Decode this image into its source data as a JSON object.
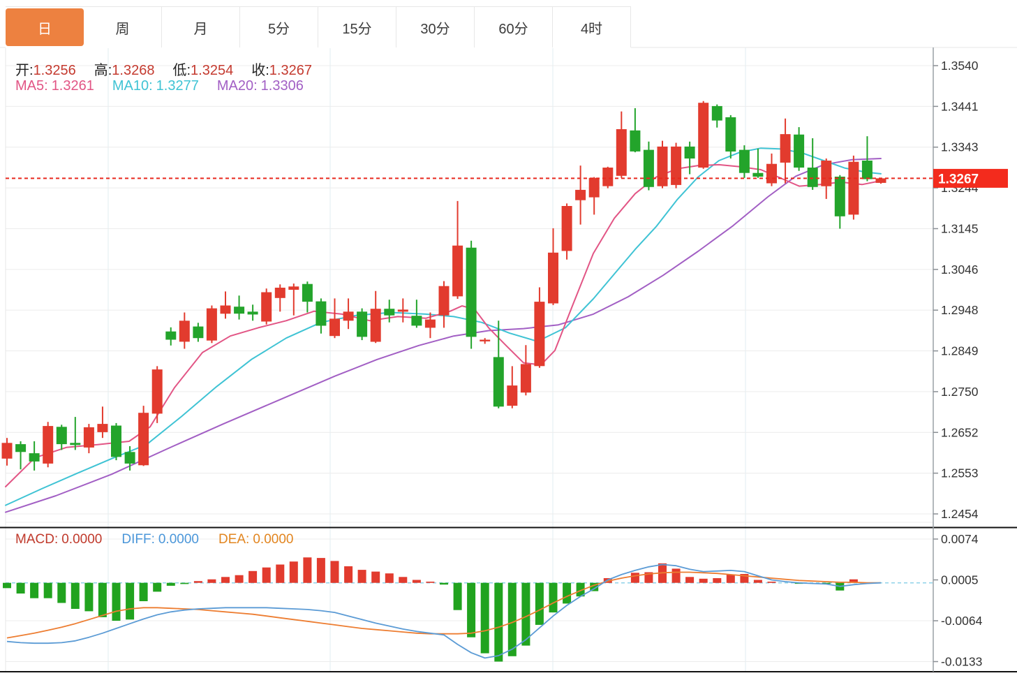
{
  "tabs": {
    "items": [
      {
        "key": "day",
        "label": "日",
        "active": true
      },
      {
        "key": "week",
        "label": "周",
        "active": false
      },
      {
        "key": "month",
        "label": "月",
        "active": false
      },
      {
        "key": "5min",
        "label": "5分",
        "active": false
      },
      {
        "key": "15min",
        "label": "15分",
        "active": false
      },
      {
        "key": "30min",
        "label": "30分",
        "active": false
      },
      {
        "key": "60min",
        "label": "60分",
        "active": false
      },
      {
        "key": "4hour",
        "label": "4时",
        "active": false
      }
    ]
  },
  "legend": {
    "open_label": "开:",
    "open": "1.3256",
    "high_label": "高:",
    "high": "1.3268",
    "low_label": "低:",
    "low": "1.3254",
    "close_label": "收:",
    "close": "1.3267"
  },
  "ma_legend": {
    "ma5_label": "MA5:",
    "ma5": "1.3261",
    "ma10_label": "MA10:",
    "ma10": "1.3277",
    "ma20_label": "MA20:",
    "ma20": "1.3306"
  },
  "macd_legend": {
    "macd_label": "MACD:",
    "macd": "0.0000",
    "diff_label": "DIFF:",
    "diff": "0.0000",
    "dea_label": "DEA:",
    "dea": "0.0000"
  },
  "price_tag": "1.3267",
  "colors": {
    "up": "#e23b2e",
    "down": "#23a42b",
    "ma5": "#e25585",
    "ma10": "#3fc3d4",
    "ma20": "#a25fc4",
    "diff": "#5b9bd5",
    "dea": "#ed7d31",
    "hist_up": "#e23b2e",
    "hist_down": "#21a31f",
    "dotted_price": "#e8281e",
    "tag_bg": "#f32b1d",
    "tag_text": "#ffffff",
    "tab_active": "#ed8140",
    "axis_text": "#333333",
    "grid": "#ececec",
    "vgrid": "#e2ecf2",
    "zero_dash": "#8fd3e8",
    "axis_line": "#9aa0a6",
    "separator": "#111111"
  },
  "chart_data": {
    "type": "candlestick+macd",
    "title": "",
    "price_axis": {
      "max": 1.354,
      "min": 1.2454,
      "labels": [
        "1.3540",
        "1.3441",
        "1.3343",
        "1.3244",
        "1.3145",
        "1.3046",
        "1.2948",
        "1.2849",
        "1.2750",
        "1.2652",
        "1.2553",
        "1.2454"
      ]
    },
    "current_price": 1.3267,
    "candles": [
      [
        1.2588,
        1.2638,
        1.2571,
        1.2626
      ],
      [
        1.2623,
        1.263,
        1.2562,
        1.2604
      ],
      [
        1.2601,
        1.263,
        1.2559,
        1.2581
      ],
      [
        1.2576,
        1.2677,
        1.2567,
        1.2667
      ],
      [
        1.2665,
        1.267,
        1.2609,
        1.2623
      ],
      [
        1.2626,
        1.2689,
        1.2609,
        1.2621
      ],
      [
        1.2615,
        1.2672,
        1.2601,
        1.2664
      ],
      [
        1.2652,
        1.2714,
        1.2638,
        1.2672
      ],
      [
        1.2668,
        1.2674,
        1.2584,
        1.2592
      ],
      [
        1.2604,
        1.2618,
        1.2559,
        1.2576
      ],
      [
        1.2572,
        1.2716,
        1.257,
        1.2699
      ],
      [
        1.2697,
        1.2812,
        1.2674,
        1.2804
      ],
      [
        1.2896,
        1.2906,
        1.2862,
        1.2876
      ],
      [
        1.2871,
        1.2942,
        1.2854,
        1.2922
      ],
      [
        1.2908,
        1.2917,
        1.2871,
        1.288
      ],
      [
        1.2874,
        1.2959,
        1.2868,
        1.2952
      ],
      [
        1.2939,
        1.2993,
        1.2927,
        1.2959
      ],
      [
        1.2956,
        1.2983,
        1.2925,
        1.2939
      ],
      [
        1.2944,
        1.2961,
        1.2922,
        1.2937
      ],
      [
        1.292,
        1.3,
        1.2913,
        1.2991
      ],
      [
        1.2977,
        1.301,
        1.2944,
        1.3002
      ],
      [
        1.2997,
        1.3012,
        1.2935,
        1.3005
      ],
      [
        1.3011,
        1.3017,
        1.2942,
        1.2968
      ],
      [
        1.2969,
        1.2976,
        1.2891,
        1.291
      ],
      [
        1.2885,
        1.2976,
        1.288,
        1.2927
      ],
      [
        1.2922,
        1.2976,
        1.2902,
        1.2944
      ],
      [
        1.2944,
        1.2952,
        1.2875,
        1.2883
      ],
      [
        1.2871,
        1.2994,
        1.2868,
        1.2951
      ],
      [
        1.2951,
        1.2973,
        1.2918,
        1.2935
      ],
      [
        1.2944,
        1.2976,
        1.2918,
        1.2949
      ],
      [
        1.2934,
        1.2973,
        1.2905,
        1.291
      ],
      [
        1.2905,
        1.2942,
        1.288,
        1.2925
      ],
      [
        1.2935,
        1.3018,
        1.2905,
        1.3006
      ],
      [
        1.2981,
        1.3212,
        1.2975,
        1.3104
      ],
      [
        1.3099,
        1.3116,
        1.2854,
        1.2883
      ],
      [
        1.2872,
        1.288,
        1.2866,
        1.2876
      ],
      [
        1.2834,
        1.2922,
        1.271,
        1.2714
      ],
      [
        1.2716,
        1.2812,
        1.271,
        1.2765
      ],
      [
        1.2748,
        1.2863,
        1.2741,
        1.2817
      ],
      [
        1.2812,
        1.3003,
        1.2808,
        1.2968
      ],
      [
        1.2964,
        1.3146,
        1.296,
        1.3087
      ],
      [
        1.3091,
        1.3206,
        1.307,
        1.32
      ],
      [
        1.3214,
        1.3298,
        1.3155,
        1.3239
      ],
      [
        1.3221,
        1.327,
        1.3179,
        1.3268
      ],
      [
        1.3248,
        1.3295,
        1.3243,
        1.3293
      ],
      [
        1.3273,
        1.3429,
        1.3268,
        1.3386
      ],
      [
        1.3383,
        1.3437,
        1.333,
        1.3332
      ],
      [
        1.3336,
        1.3356,
        1.3238,
        1.3246
      ],
      [
        1.3248,
        1.3358,
        1.3243,
        1.3344
      ],
      [
        1.3251,
        1.3353,
        1.3243,
        1.3344
      ],
      [
        1.3344,
        1.3356,
        1.3277,
        1.3315
      ],
      [
        1.3293,
        1.3454,
        1.329,
        1.345
      ],
      [
        1.3442,
        1.3446,
        1.339,
        1.3407
      ],
      [
        1.3415,
        1.342,
        1.3315,
        1.3332
      ],
      [
        1.3336,
        1.3347,
        1.3268,
        1.328
      ],
      [
        1.328,
        1.3339,
        1.3268,
        1.3271
      ],
      [
        1.3255,
        1.3327,
        1.3248,
        1.3302
      ],
      [
        1.3305,
        1.3412,
        1.3255,
        1.3374
      ],
      [
        1.3373,
        1.3391,
        1.3285,
        1.3293
      ],
      [
        1.3293,
        1.3364,
        1.3239,
        1.3246
      ],
      [
        1.3248,
        1.3315,
        1.3217,
        1.331
      ],
      [
        1.3271,
        1.3275,
        1.3145,
        1.3175
      ],
      [
        1.3179,
        1.3322,
        1.3167,
        1.3307
      ],
      [
        1.331,
        1.3369,
        1.326,
        1.3265
      ],
      [
        1.3256,
        1.3268,
        1.3254,
        1.3267
      ]
    ],
    "ma5_points": [
      [
        8,
        1.252
      ],
      [
        50,
        1.259
      ],
      [
        95,
        1.2615
      ],
      [
        140,
        1.2622
      ],
      [
        185,
        1.263
      ],
      [
        215,
        1.2665
      ],
      [
        250,
        1.276
      ],
      [
        290,
        1.2845
      ],
      [
        330,
        1.2885
      ],
      [
        370,
        1.2905
      ],
      [
        410,
        1.2922
      ],
      [
        450,
        1.2945
      ],
      [
        490,
        1.2938
      ],
      [
        530,
        1.2922
      ],
      [
        570,
        1.2932
      ],
      [
        610,
        1.2928
      ],
      [
        645,
        1.2945
      ],
      [
        662,
        1.2958
      ],
      [
        680,
        1.295
      ],
      [
        700,
        1.2905
      ],
      [
        725,
        1.2862
      ],
      [
        750,
        1.282
      ],
      [
        775,
        1.2815
      ],
      [
        795,
        1.285
      ],
      [
        820,
        1.2958
      ],
      [
        850,
        1.3085
      ],
      [
        880,
        1.317
      ],
      [
        910,
        1.323
      ],
      [
        940,
        1.327
      ],
      [
        970,
        1.329
      ],
      [
        1000,
        1.3298
      ],
      [
        1030,
        1.33
      ],
      [
        1060,
        1.3295
      ],
      [
        1090,
        1.3288
      ],
      [
        1115,
        1.327
      ],
      [
        1145,
        1.3248
      ],
      [
        1175,
        1.3252
      ],
      [
        1205,
        1.3258
      ],
      [
        1235,
        1.3252
      ],
      [
        1262,
        1.3261
      ]
    ],
    "ma10_points": [
      [
        8,
        1.2475
      ],
      [
        60,
        1.2515
      ],
      [
        110,
        1.2552
      ],
      [
        160,
        1.2588
      ],
      [
        210,
        1.2622
      ],
      [
        260,
        1.269
      ],
      [
        310,
        1.2762
      ],
      [
        360,
        1.2828
      ],
      [
        410,
        1.288
      ],
      [
        460,
        1.2918
      ],
      [
        510,
        1.2935
      ],
      [
        560,
        1.2942
      ],
      [
        610,
        1.2938
      ],
      [
        650,
        1.2932
      ],
      [
        690,
        1.2918
      ],
      [
        730,
        1.2892
      ],
      [
        770,
        1.2872
      ],
      [
        810,
        1.2905
      ],
      [
        850,
        1.2975
      ],
      [
        880,
        1.3035
      ],
      [
        910,
        1.3095
      ],
      [
        940,
        1.315
      ],
      [
        970,
        1.3215
      ],
      [
        1000,
        1.327
      ],
      [
        1030,
        1.331
      ],
      [
        1060,
        1.333
      ],
      [
        1090,
        1.334
      ],
      [
        1120,
        1.3338
      ],
      [
        1150,
        1.3328
      ],
      [
        1180,
        1.331
      ],
      [
        1210,
        1.3292
      ],
      [
        1240,
        1.3282
      ],
      [
        1262,
        1.3278
      ]
    ],
    "ma20_points": [
      [
        8,
        1.2458
      ],
      [
        80,
        1.2498
      ],
      [
        160,
        1.255
      ],
      [
        240,
        1.2612
      ],
      [
        320,
        1.2672
      ],
      [
        400,
        1.273
      ],
      [
        480,
        1.2788
      ],
      [
        540,
        1.2828
      ],
      [
        600,
        1.2862
      ],
      [
        650,
        1.2885
      ],
      [
        700,
        1.2898
      ],
      [
        750,
        1.2903
      ],
      [
        800,
        1.2912
      ],
      [
        850,
        1.2938
      ],
      [
        900,
        1.298
      ],
      [
        950,
        1.3032
      ],
      [
        1000,
        1.309
      ],
      [
        1050,
        1.3152
      ],
      [
        1100,
        1.3222
      ],
      [
        1140,
        1.3272
      ],
      [
        1180,
        1.33
      ],
      [
        1220,
        1.3312
      ],
      [
        1262,
        1.3315
      ]
    ],
    "macd": {
      "axis_max": 0.0074,
      "axis_min": -0.0133,
      "axis_labels": [
        "0.0074",
        "0.0005",
        "-0.0064",
        "-0.0133"
      ],
      "histogram": [
        -0.0009,
        -0.0018,
        -0.0026,
        -0.0026,
        -0.0034,
        -0.0044,
        -0.0048,
        -0.0058,
        -0.0064,
        -0.0062,
        -0.0031,
        -0.0015,
        -0.0005,
        -0.0002,
        0.0003,
        0.0006,
        0.001,
        0.0013,
        0.002,
        0.0026,
        0.0031,
        0.0036,
        0.0043,
        0.0042,
        0.0037,
        0.0028,
        0.0022,
        0.0019,
        0.0016,
        0.001,
        0.0005,
        0.0002,
        -0.0003,
        -0.0046,
        -0.0092,
        -0.0119,
        -0.0133,
        -0.0124,
        -0.0106,
        -0.0071,
        -0.005,
        -0.0035,
        -0.0023,
        -0.0014,
        0.0008,
        0.0,
        0.0017,
        0.0018,
        0.0033,
        0.0024,
        0.001,
        0.0007,
        0.0008,
        0.0014,
        0.0015,
        0.0005,
        0.0002,
        0.0,
        -0.0001,
        0.0,
        -0.0001,
        -0.0013,
        0.0006,
        0.0,
        0.0
      ],
      "diff": [
        -0.0099,
        -0.0101,
        -0.0102,
        -0.0102,
        -0.0101,
        -0.0098,
        -0.0092,
        -0.0085,
        -0.0077,
        -0.0069,
        -0.0061,
        -0.0054,
        -0.0049,
        -0.0046,
        -0.0044,
        -0.0043,
        -0.0042,
        -0.0042,
        -0.0042,
        -0.0042,
        -0.0043,
        -0.0044,
        -0.0045,
        -0.0047,
        -0.005,
        -0.0056,
        -0.0062,
        -0.0068,
        -0.0073,
        -0.0078,
        -0.0082,
        -0.0085,
        -0.0088,
        -0.0104,
        -0.0118,
        -0.0127,
        -0.0123,
        -0.0112,
        -0.0096,
        -0.0076,
        -0.0056,
        -0.0038,
        -0.0023,
        -0.001,
        0.0005,
        0.0014,
        0.0021,
        0.0027,
        0.0031,
        0.0029,
        0.0023,
        0.0019,
        0.002,
        0.0021,
        0.0019,
        0.0012,
        0.0005,
        0.0002,
        0.0,
        -0.0001,
        -0.0002,
        -0.0006,
        -0.0003,
        -0.0001,
        0.0
      ],
      "dea": [
        -0.0093,
        -0.0089,
        -0.0085,
        -0.008,
        -0.0075,
        -0.0069,
        -0.0062,
        -0.0055,
        -0.0048,
        -0.0044,
        -0.0042,
        -0.0042,
        -0.0043,
        -0.0044,
        -0.0045,
        -0.0047,
        -0.0049,
        -0.0051,
        -0.0053,
        -0.0056,
        -0.0059,
        -0.0062,
        -0.0065,
        -0.0068,
        -0.0071,
        -0.0074,
        -0.0077,
        -0.0079,
        -0.0081,
        -0.0083,
        -0.0085,
        -0.0086,
        -0.0086,
        -0.0086,
        -0.0085,
        -0.0081,
        -0.0075,
        -0.0067,
        -0.0057,
        -0.0046,
        -0.0034,
        -0.0023,
        -0.0013,
        -0.0004,
        0.0003,
        0.0008,
        0.0012,
        0.0015,
        0.0017,
        0.0018,
        0.0018,
        0.0017,
        0.0016,
        0.0014,
        0.0012,
        0.001,
        0.0008,
        0.0006,
        0.0004,
        0.0003,
        0.0002,
        0.0001,
        0.0001,
        0.0,
        0.0
      ]
    }
  }
}
